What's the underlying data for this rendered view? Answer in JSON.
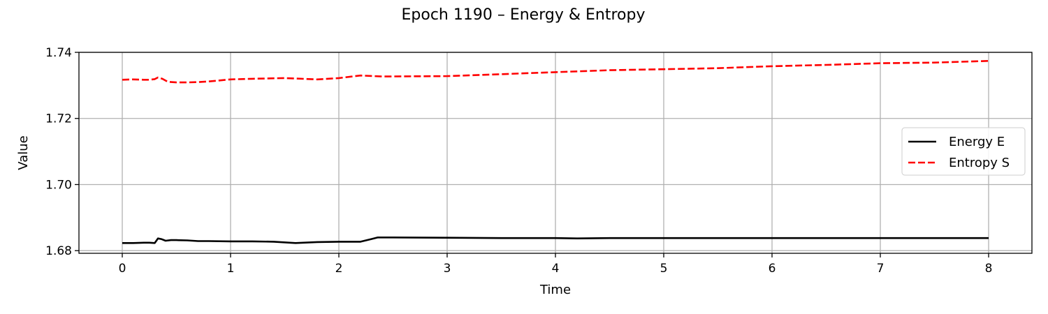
{
  "chart_data": {
    "type": "line",
    "title": "Epoch 1190 – Energy & Entropy",
    "xlabel": "Time",
    "ylabel": "Value",
    "xlim": [
      -0.4,
      8.4
    ],
    "ylim": [
      1.6792,
      1.74
    ],
    "xticks": [
      0,
      1,
      2,
      3,
      4,
      5,
      6,
      7,
      8
    ],
    "yticks": [
      1.68,
      1.7,
      1.72,
      1.74
    ],
    "ytick_labels": [
      "1.68",
      "1.70",
      "1.72",
      "1.74"
    ],
    "grid": true,
    "legend_position": "center-right",
    "series": [
      {
        "name": "Energy E",
        "color": "#000000",
        "style": "solid",
        "x": [
          0,
          0.1,
          0.2,
          0.25,
          0.3,
          0.33,
          0.36,
          0.4,
          0.45,
          0.5,
          0.6,
          0.7,
          0.8,
          1.0,
          1.2,
          1.4,
          1.6,
          1.8,
          2.0,
          2.2,
          2.3,
          2.36,
          2.5,
          3.0,
          3.5,
          4.0,
          4.2,
          4.5,
          5.0,
          6.0,
          7.0,
          8.0
        ],
        "y": [
          1.6823,
          1.6823,
          1.6824,
          1.6824,
          1.6823,
          1.6837,
          1.6835,
          1.683,
          1.6832,
          1.6832,
          1.6831,
          1.6829,
          1.6829,
          1.6828,
          1.6828,
          1.6827,
          1.6823,
          1.6826,
          1.6827,
          1.6827,
          1.6835,
          1.684,
          1.684,
          1.6839,
          1.6838,
          1.6838,
          1.6837,
          1.6838,
          1.6838,
          1.6838,
          1.6838,
          1.6838
        ]
      },
      {
        "name": "Entropy S",
        "color": "#ff0000",
        "style": "dashed",
        "x": [
          0,
          0.1,
          0.2,
          0.25,
          0.3,
          0.33,
          0.37,
          0.42,
          0.5,
          0.6,
          0.7,
          0.8,
          1.0,
          1.2,
          1.5,
          1.8,
          2.0,
          2.2,
          2.4,
          3.0,
          3.5,
          4.0,
          4.5,
          5.0,
          5.5,
          6.0,
          6.5,
          7.0,
          7.5,
          8.0
        ],
        "y": [
          1.7317,
          1.7318,
          1.7317,
          1.7317,
          1.7319,
          1.7324,
          1.732,
          1.7311,
          1.7309,
          1.7309,
          1.731,
          1.7312,
          1.7318,
          1.732,
          1.7322,
          1.7318,
          1.7322,
          1.733,
          1.7327,
          1.7328,
          1.7334,
          1.734,
          1.7346,
          1.7349,
          1.7352,
          1.7358,
          1.7362,
          1.7367,
          1.7369,
          1.7374
        ]
      }
    ]
  }
}
